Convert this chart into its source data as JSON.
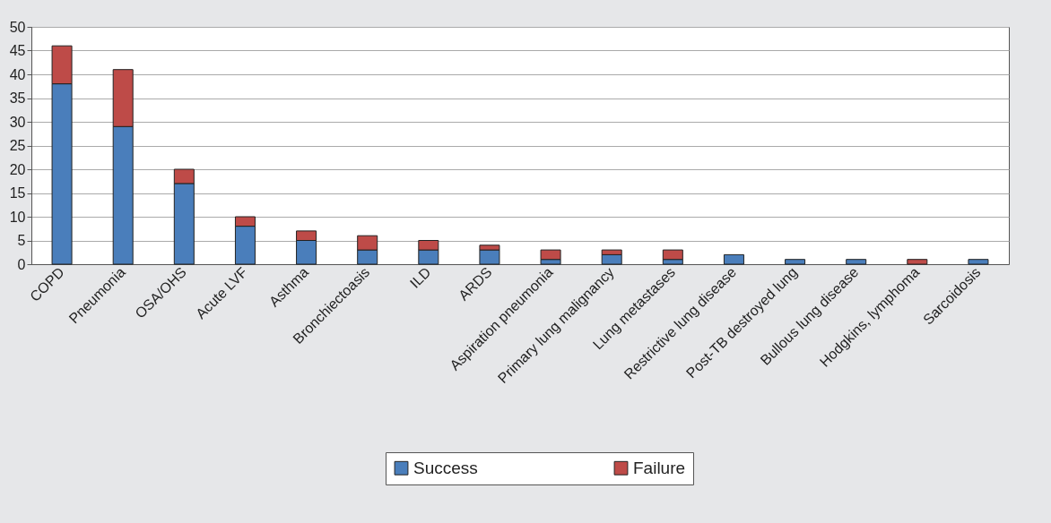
{
  "chart_data": {
    "type": "bar",
    "stacked": true,
    "categories": [
      "COPD",
      "Pneumonia",
      "OSA/OHS",
      "Acute LVF",
      "Asthma",
      "Bronchiectoasis",
      "ILD",
      "ARDS",
      "Aspiration pneumonia",
      "Primary lung malignancy",
      "Lung metastases",
      "Restrictive lung disease",
      "Post-TB destroyed lung",
      "Bullous lung disease",
      "Hodgkins, lymphoma",
      "Sarcoidosis"
    ],
    "series": [
      {
        "name": "Success",
        "color": "#4a7ebb",
        "values": [
          38,
          29,
          17,
          8,
          5,
          3,
          3,
          3,
          1,
          2,
          1,
          2,
          1,
          1,
          0,
          1
        ]
      },
      {
        "name": "Failure",
        "color": "#be4b48",
        "values": [
          8,
          12,
          3,
          2,
          2,
          3,
          2,
          1,
          2,
          1,
          2,
          0,
          0,
          0,
          1,
          0
        ]
      }
    ],
    "ylim": [
      0,
      50
    ],
    "yticks": [
      0,
      5,
      10,
      15,
      20,
      25,
      30,
      35,
      40,
      45,
      50
    ],
    "grid": "y",
    "legend": "bottom"
  }
}
